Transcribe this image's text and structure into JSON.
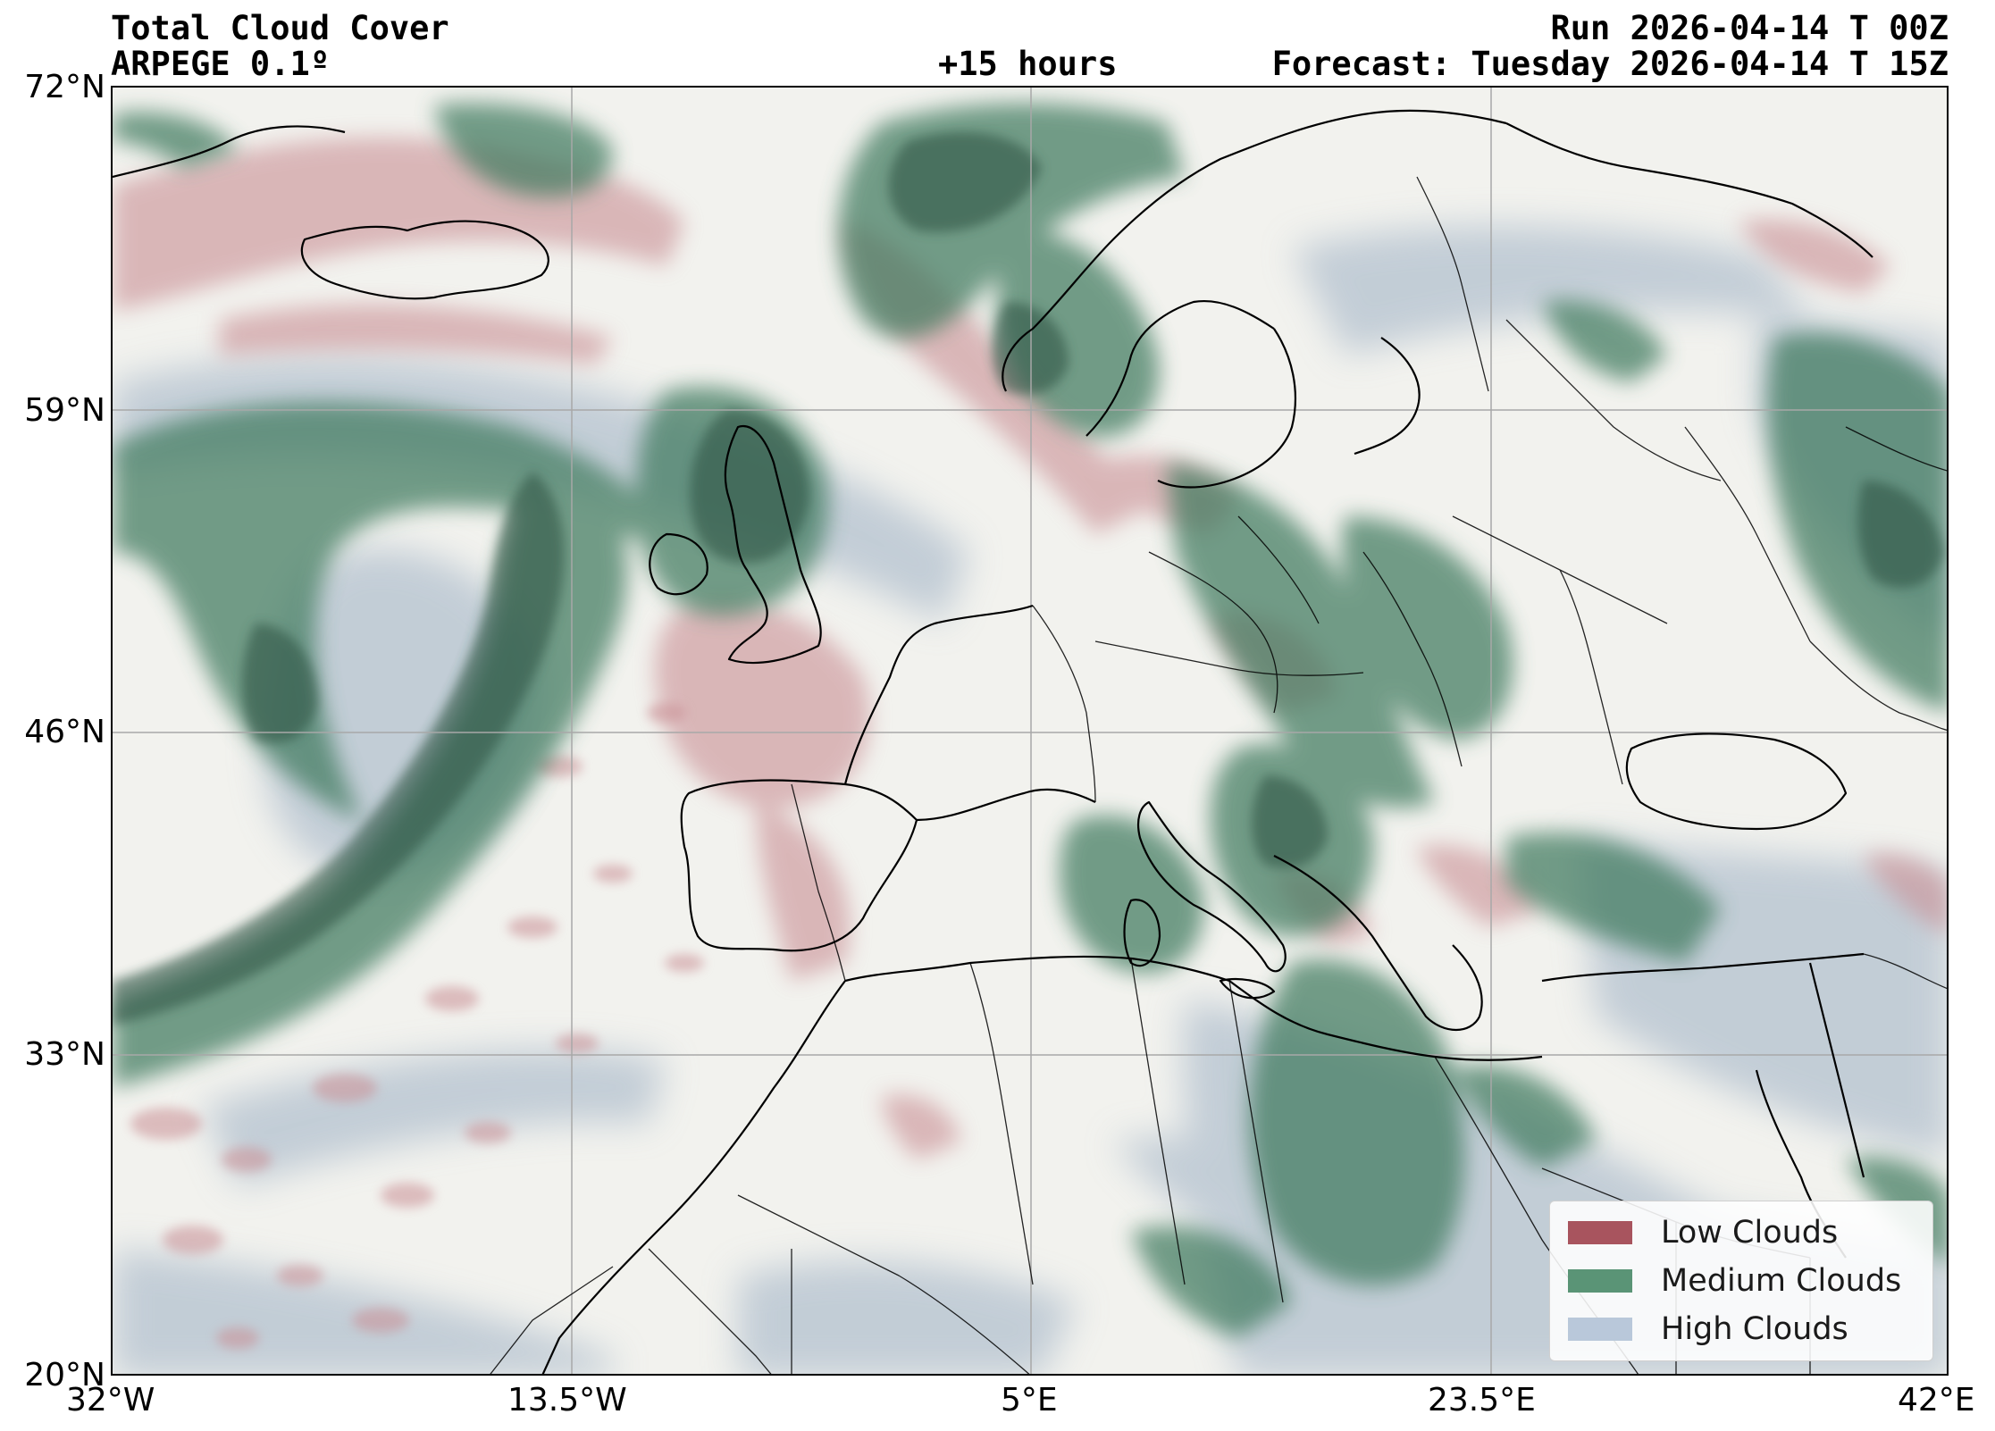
{
  "header": {
    "title": "Total Cloud Cover",
    "model": "ARPEGE 0.1º",
    "lead": "+15 hours",
    "run": "Run 2026-04-14 T 00Z",
    "forecast": "Forecast: Tuesday 2026-04-14 T 15Z"
  },
  "axes": {
    "lat_ticks": [
      "72°N",
      "59°N",
      "46°N",
      "33°N",
      "20°N"
    ],
    "lon_ticks": [
      "32°W",
      "13.5°W",
      "5°E",
      "23.5°E",
      "42°E"
    ],
    "lat_range": [
      20,
      72
    ],
    "lon_range": [
      -32,
      42
    ],
    "grid": true
  },
  "legend": {
    "placement": "lower-right",
    "items": [
      {
        "label": "Low Clouds",
        "color": "#a8545e"
      },
      {
        "label": "Medium Clouds",
        "color": "#5a9476"
      },
      {
        "label": "High Clouds",
        "color": "#b9c8da"
      }
    ]
  },
  "colors": {
    "background": "#f2f2ee",
    "low": "#c98f94",
    "medium": "#3f7a5e",
    "high": "#b3c1cf",
    "coast": "#000000",
    "grid": "#a8a8a8"
  }
}
